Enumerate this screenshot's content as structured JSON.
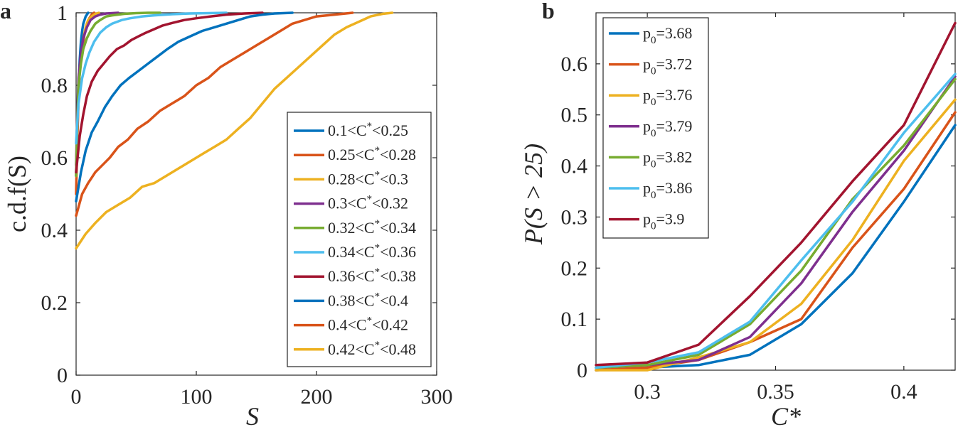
{
  "chart_data": [
    {
      "panel": "a",
      "type": "line",
      "title": "",
      "xlabel": "S",
      "ylabel": "c.d.f(S)",
      "xlim": [
        0,
        300
      ],
      "ylim": [
        0,
        1
      ],
      "xticks": [
        0,
        100,
        200,
        300
      ],
      "yticks": [
        0,
        0.2,
        0.4,
        0.6,
        0.8,
        1
      ],
      "xtick_labels": [
        "0",
        "100",
        "200",
        "300"
      ],
      "ytick_labels": [
        "0",
        "0.2",
        "0.4",
        "0.6",
        "0.8",
        "1"
      ],
      "legend_position": "right",
      "series": [
        {
          "name_main": "0.1<C",
          "name_sup": "*",
          "name_rest": "<0.25",
          "color": "#0072BD",
          "x": [
            0,
            1,
            2,
            3,
            4,
            5,
            6,
            7,
            8,
            9,
            10
          ],
          "y": [
            0.55,
            0.7,
            0.8,
            0.87,
            0.92,
            0.95,
            0.97,
            0.98,
            0.99,
            0.995,
            1.0
          ]
        },
        {
          "name_main": "0.25<C",
          "name_sup": "*",
          "name_rest": "<0.28",
          "color": "#D95319",
          "x": [
            0,
            1,
            2,
            3,
            5,
            7,
            9,
            11,
            13,
            15
          ],
          "y": [
            0.5,
            0.65,
            0.76,
            0.84,
            0.9,
            0.94,
            0.97,
            0.985,
            0.995,
            1.0
          ]
        },
        {
          "name_main": "0.28<C",
          "name_sup": "*",
          "name_rest": "<0.3",
          "color": "#EDB120",
          "x": [
            0,
            1,
            2,
            4,
            6,
            8,
            10,
            13,
            16,
            19
          ],
          "y": [
            0.55,
            0.7,
            0.8,
            0.88,
            0.93,
            0.96,
            0.98,
            0.99,
            0.997,
            1.0
          ]
        },
        {
          "name_main": "0.3<C",
          "name_sup": "*",
          "name_rest": "<0.32",
          "color": "#7E2F8E",
          "x": [
            0,
            1,
            2,
            4,
            6,
            9,
            12,
            16,
            20,
            25,
            30,
            35
          ],
          "y": [
            0.58,
            0.72,
            0.82,
            0.89,
            0.93,
            0.96,
            0.98,
            0.99,
            0.995,
            0.998,
            0.999,
            1.0
          ]
        },
        {
          "name_main": "0.32<C",
          "name_sup": "*",
          "name_rest": "<0.34",
          "color": "#77AC30",
          "x": [
            0,
            1,
            2,
            4,
            6,
            9,
            12,
            16,
            20,
            25,
            30,
            40,
            50,
            60,
            70
          ],
          "y": [
            0.55,
            0.7,
            0.8,
            0.86,
            0.9,
            0.93,
            0.95,
            0.97,
            0.98,
            0.99,
            0.993,
            0.997,
            0.999,
            1.0,
            1.0
          ]
        },
        {
          "name_main": "0.34<C",
          "name_sup": "*",
          "name_rest": "<0.36",
          "color": "#4DBEEE",
          "x": [
            0,
            2,
            5,
            8,
            11,
            15,
            20,
            25,
            30,
            38,
            45,
            55,
            65,
            80,
            95,
            110,
            125
          ],
          "y": [
            0.64,
            0.75,
            0.82,
            0.86,
            0.89,
            0.92,
            0.945,
            0.96,
            0.97,
            0.98,
            0.985,
            0.99,
            0.993,
            0.996,
            0.998,
            0.999,
            1.0
          ]
        },
        {
          "name_main": "0.36<C",
          "name_sup": "*",
          "name_rest": "<0.38",
          "color": "#A2142F",
          "x": [
            0,
            3,
            6,
            9,
            13,
            18,
            23,
            28,
            34,
            40,
            46,
            52,
            58,
            65,
            72,
            80,
            90,
            100,
            112,
            125,
            140,
            155
          ],
          "y": [
            0.56,
            0.66,
            0.72,
            0.77,
            0.81,
            0.84,
            0.86,
            0.88,
            0.9,
            0.91,
            0.925,
            0.935,
            0.945,
            0.955,
            0.965,
            0.972,
            0.98,
            0.985,
            0.99,
            0.995,
            0.998,
            1.0
          ]
        },
        {
          "name_main": "0.38<C",
          "name_sup": "*",
          "name_rest": "<0.4",
          "color": "#0072BD",
          "x": [
            0,
            4,
            8,
            13,
            18,
            24,
            30,
            37,
            44,
            52,
            60,
            68,
            76,
            85,
            95,
            105,
            115,
            125,
            135,
            145,
            155,
            165,
            180
          ],
          "y": [
            0.48,
            0.56,
            0.62,
            0.67,
            0.7,
            0.74,
            0.77,
            0.8,
            0.82,
            0.84,
            0.86,
            0.88,
            0.9,
            0.92,
            0.935,
            0.95,
            0.96,
            0.97,
            0.98,
            0.99,
            0.995,
            0.998,
            1.0
          ]
        },
        {
          "name_main": "0.4<C",
          "name_sup": "*",
          "name_rest": "<0.42",
          "color": "#D95319",
          "x": [
            0,
            5,
            10,
            16,
            22,
            28,
            35,
            43,
            51,
            60,
            70,
            80,
            90,
            100,
            110,
            120,
            130,
            140,
            150,
            160,
            170,
            180,
            190,
            200,
            215,
            230
          ],
          "y": [
            0.44,
            0.5,
            0.53,
            0.56,
            0.58,
            0.6,
            0.63,
            0.65,
            0.68,
            0.7,
            0.73,
            0.75,
            0.77,
            0.8,
            0.82,
            0.85,
            0.87,
            0.89,
            0.91,
            0.93,
            0.95,
            0.97,
            0.98,
            0.99,
            0.995,
            1.0
          ]
        },
        {
          "name_main": "0.42<C",
          "name_sup": "*",
          "name_rest": "<0.48",
          "color": "#EDB120",
          "x": [
            0,
            8,
            16,
            25,
            35,
            45,
            55,
            65,
            75,
            85,
            95,
            105,
            115,
            125,
            135,
            145,
            155,
            165,
            175,
            185,
            195,
            205,
            215,
            225,
            235,
            245,
            255,
            263
          ],
          "y": [
            0.35,
            0.39,
            0.42,
            0.45,
            0.47,
            0.49,
            0.52,
            0.53,
            0.55,
            0.57,
            0.59,
            0.61,
            0.63,
            0.65,
            0.68,
            0.71,
            0.75,
            0.79,
            0.82,
            0.85,
            0.88,
            0.91,
            0.94,
            0.96,
            0.975,
            0.99,
            0.997,
            1.0
          ]
        }
      ]
    },
    {
      "panel": "b",
      "type": "line",
      "title": "",
      "xlabel": "C*",
      "ylabel": "P(S > 25)",
      "xlim": [
        0.28,
        0.42
      ],
      "ylim": [
        0,
        0.7
      ],
      "xticks": [
        0.3,
        0.35,
        0.4
      ],
      "yticks": [
        0,
        0.1,
        0.2,
        0.3,
        0.4,
        0.5,
        0.6
      ],
      "xtick_labels": [
        "0.3",
        "0.35",
        "0.4"
      ],
      "ytick_labels": [
        "0",
        "0.1",
        "0.2",
        "0.3",
        "0.4",
        "0.5",
        "0.6"
      ],
      "legend_position": "top-left",
      "x": [
        0.28,
        0.3,
        0.32,
        0.34,
        0.36,
        0.38,
        0.4,
        0.42
      ],
      "series": [
        {
          "name_main": "p",
          "name_sub": "0",
          "name_rest": "=3.68",
          "color": "#0072BD",
          "values": [
            0.0,
            0.005,
            0.01,
            0.03,
            0.09,
            0.19,
            0.33,
            0.48
          ]
        },
        {
          "name_main": "p",
          "name_sub": "0",
          "name_rest": "=3.72",
          "color": "#D95319",
          "values": [
            0.0,
            0.005,
            0.02,
            0.055,
            0.1,
            0.24,
            0.355,
            0.505
          ]
        },
        {
          "name_main": "p",
          "name_sub": "0",
          "name_rest": "=3.76",
          "color": "#EDB120",
          "values": [
            0.0,
            0.0,
            0.025,
            0.055,
            0.13,
            0.255,
            0.41,
            0.53
          ]
        },
        {
          "name_main": "p",
          "name_sub": "0",
          "name_rest": "=3.79",
          "color": "#7E2F8E",
          "values": [
            0.005,
            0.01,
            0.02,
            0.065,
            0.17,
            0.31,
            0.43,
            0.575
          ]
        },
        {
          "name_main": "p",
          "name_sub": "0",
          "name_rest": "=3.82",
          "color": "#77AC30",
          "values": [
            0.005,
            0.01,
            0.03,
            0.09,
            0.195,
            0.335,
            0.44,
            0.57
          ]
        },
        {
          "name_main": "p",
          "name_sub": "0",
          "name_rest": "=3.86",
          "color": "#4DBEEE",
          "values": [
            0.005,
            0.015,
            0.035,
            0.095,
            0.215,
            0.33,
            0.465,
            0.58
          ]
        },
        {
          "name_main": "p",
          "name_sub": "0",
          "name_rest": "=3.9",
          "color": "#A2142F",
          "values": [
            0.01,
            0.015,
            0.05,
            0.145,
            0.25,
            0.37,
            0.48,
            0.68
          ]
        }
      ]
    }
  ]
}
